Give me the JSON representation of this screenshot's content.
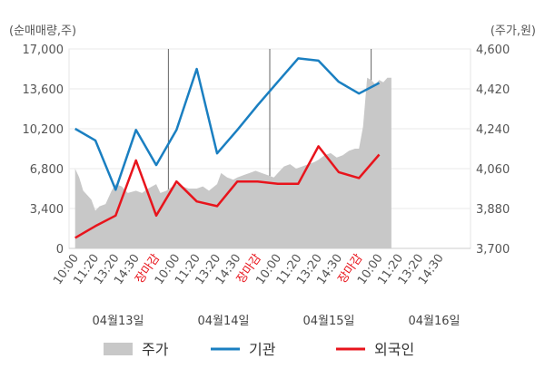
{
  "chart_data": {
    "type": "line",
    "left_unit": "(순매매량,주)",
    "right_unit": "(주가,원)",
    "left_axis": {
      "ticks": [
        "17,000",
        "13,600",
        "10,200",
        "6,800",
        "3,400",
        "0"
      ],
      "range": [
        0,
        17000
      ]
    },
    "right_axis": {
      "ticks": [
        "4,600",
        "4,420",
        "4,240",
        "4,060",
        "3,880",
        "3,700"
      ],
      "range": [
        3700,
        4600
      ]
    },
    "x_tick_labels": [
      "10:00",
      "11:20",
      "13:20",
      "14:30",
      "장마감",
      "10:00",
      "11:20",
      "13:20",
      "14:30",
      "장마감",
      "10:00",
      "11:20",
      "13:20",
      "14:30",
      "장마감",
      "10:00",
      "11:20",
      "13:20",
      "14:30"
    ],
    "x_tick_highlight": [
      false,
      false,
      false,
      false,
      true,
      false,
      false,
      false,
      false,
      true,
      false,
      false,
      false,
      false,
      true,
      false,
      false,
      false,
      false
    ],
    "dates": [
      "04월13일",
      "04월14일",
      "04월15일",
      "04월16일"
    ],
    "legend": [
      {
        "name": "주가",
        "color": "#c8c8c8",
        "shape": "box"
      },
      {
        "name": "기관",
        "color": "#1a7fc1",
        "shape": "line"
      },
      {
        "name": "외국인",
        "color": "#e8141c",
        "shape": "line"
      }
    ],
    "series": [
      {
        "name": "기관",
        "color": "#1a7fc1",
        "axis": "left",
        "x": [
          0,
          1,
          2,
          3,
          4,
          5,
          6,
          7,
          8,
          9,
          10,
          11,
          12,
          13,
          14,
          15
        ],
        "values": [
          10200,
          9200,
          5000,
          10100,
          7100,
          10100,
          15300,
          8100,
          10100,
          12200,
          14200,
          16200,
          16000,
          14200,
          13200,
          14100
        ]
      },
      {
        "name": "외국인",
        "color": "#e8141c",
        "axis": "left",
        "x": [
          0,
          1,
          2,
          3,
          4,
          5,
          6,
          7,
          8,
          9,
          10,
          11,
          12,
          13,
          14,
          15
        ],
        "values": [
          900,
          1900,
          2800,
          7500,
          2800,
          5700,
          4000,
          3600,
          5700,
          5700,
          5500,
          5500,
          8700,
          6500,
          6000,
          8000
        ]
      },
      {
        "name": "주가",
        "color": "#c8c8c8",
        "axis": "right",
        "type": "area",
        "x": [
          0,
          0.2,
          0.4,
          0.6,
          0.8,
          1,
          1.2,
          1.5,
          1.8,
          2,
          2.3,
          2.6,
          3,
          3.3,
          3.6,
          4,
          4.2,
          4.5,
          4.8,
          5,
          5.3,
          5.6,
          6,
          6.3,
          6.6,
          7,
          7.2,
          7.5,
          7.8,
          8,
          8.3,
          8.6,
          8.9,
          9.2,
          9.5,
          9.8,
          10,
          10.3,
          10.6,
          10.9,
          11.2,
          11.5,
          11.8,
          12,
          12.3,
          12.6,
          12.9,
          13.2,
          13.5,
          13.8,
          14,
          14.2,
          14.4,
          14.6,
          14.8,
          15,
          15.2,
          15.4,
          15.6
        ],
        "values": [
          4060,
          4020,
          3960,
          3940,
          3920,
          3870,
          3890,
          3900,
          3960,
          3990,
          3980,
          3950,
          3960,
          3950,
          3970,
          3990,
          3950,
          3960,
          3980,
          3990,
          3980,
          3970,
          3970,
          3980,
          3960,
          3990,
          4040,
          4020,
          4010,
          4020,
          4030,
          4040,
          4050,
          4040,
          4030,
          4020,
          4040,
          4070,
          4080,
          4060,
          4070,
          4080,
          4090,
          4100,
          4120,
          4130,
          4110,
          4120,
          4140,
          4150,
          4150,
          4250,
          4470,
          4460,
          4440,
          4460,
          4450,
          4470,
          4470
        ]
      }
    ],
    "x_index_range": [
      -0.3,
      19.5
    ],
    "separators": [
      4.6,
      9.6,
      14.6
    ]
  }
}
